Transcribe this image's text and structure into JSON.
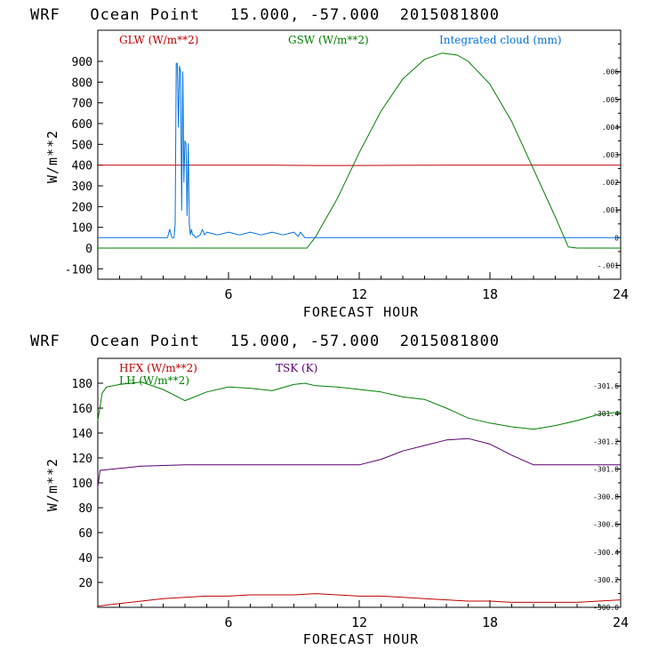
{
  "chart_data": [
    {
      "type": "line",
      "title": "WRF   Ocean Point   15.000, -57.000  2015081800",
      "xlabel": "FORECAST HOUR",
      "ylabel": "W/m**2",
      "xlim": [
        0,
        24
      ],
      "ylim": [
        -150,
        1050
      ],
      "x_ticks": [
        "6",
        "12",
        "18",
        "24"
      ],
      "y_ticks": [
        "-100",
        "0",
        "100",
        "200",
        "300",
        "400",
        "500",
        "600",
        "700",
        "800",
        "900"
      ],
      "y2_ticks": [
        "-.001",
        "0",
        ".001",
        ".002",
        ".003",
        ".004",
        ".005",
        ".006"
      ],
      "series": [
        {
          "name": "GLW (W/m**2)",
          "axis": "left",
          "color": "#c00000",
          "x": [
            0,
            2,
            4,
            6,
            8,
            10,
            12,
            14,
            16,
            18,
            20,
            22,
            24
          ],
          "values": [
            400,
            400,
            400,
            400,
            400,
            398,
            398,
            399,
            400,
            400,
            400,
            400,
            400
          ]
        },
        {
          "name": "GSW (W/m**2)",
          "axis": "left",
          "color": "#008000",
          "x": [
            0,
            9.6,
            10,
            11,
            12,
            13,
            14,
            15,
            15.8,
            16.5,
            17,
            18,
            19,
            20,
            21,
            21.6,
            22,
            24
          ],
          "values": [
            0,
            0,
            55,
            240,
            460,
            660,
            815,
            910,
            940,
            930,
            900,
            790,
            610,
            380,
            150,
            5,
            0,
            0
          ]
        },
        {
          "name": "Integrated cloud (mm)",
          "axis": "right",
          "color": "#0070e0",
          "x": [
            0,
            3.2,
            3.3,
            3.4,
            3.5,
            3.55,
            3.6,
            3.65,
            3.7,
            3.75,
            3.8,
            3.85,
            3.9,
            3.95,
            4.0,
            4.05,
            4.1,
            4.15,
            4.2,
            4.25,
            4.3,
            4.35,
            4.4,
            4.5,
            4.7,
            4.8,
            4.9,
            5.0,
            5.5,
            6.0,
            6.5,
            7.0,
            7.5,
            8.0,
            8.5,
            9.0,
            9.2,
            9.3,
            9.5,
            24
          ],
          "values": [
            0,
            0,
            0.0003,
            0,
            0,
            0.0005,
            0.0063,
            0.0063,
            0.004,
            0.0062,
            0.006,
            0.001,
            0.006,
            0.002,
            0.0035,
            0.0034,
            0.0008,
            0.0034,
            0.0005,
            0.0001,
            0.0003,
            0.0001,
            0.0001,
            0,
            0.0001,
            0.0003,
            0.0001,
            0.0002,
            0.0001,
            0.0002,
            0.0001,
            0.0002,
            0.0001,
            0.0002,
            0.0001,
            0.0002,
            5e-05,
            0.0002,
            0,
            0
          ]
        }
      ]
    },
    {
      "type": "line",
      "title": "WRF   Ocean Point   15.000, -57.000  2015081800",
      "xlabel": "FORECAST HOUR",
      "ylabel": "W/m**2",
      "xlim": [
        0,
        24
      ],
      "ylim": [
        0,
        200
      ],
      "x_ticks": [
        "6",
        "12",
        "18",
        "24"
      ],
      "y_ticks": [
        "20",
        "40",
        "60",
        "80",
        "100",
        "120",
        "140",
        "160",
        "180"
      ],
      "y2_ticks": [
        "300.0",
        "300.2",
        "300.4",
        "300.6",
        "300.8",
        "301.0",
        "301.2",
        "301.4",
        "301.6"
      ],
      "series": [
        {
          "name": "HFX (W/m**2)",
          "axis": "left",
          "color": "#c00000",
          "x": [
            0,
            1,
            2,
            3,
            4,
            5,
            6,
            7,
            8,
            9,
            10,
            11,
            12,
            13,
            14,
            15,
            16,
            17,
            18,
            19,
            20,
            21,
            22,
            23,
            24
          ],
          "values": [
            1,
            3,
            5,
            7,
            8,
            9,
            9,
            10,
            10,
            10,
            11,
            10,
            9,
            9,
            8,
            7,
            6,
            5,
            5,
            4,
            4,
            4,
            4,
            5,
            6
          ]
        },
        {
          "name": "LH (W/m**2)",
          "axis": "left",
          "color": "#008000",
          "x": [
            0,
            0.2,
            0.4,
            1,
            2,
            3,
            4,
            5,
            6,
            7,
            8,
            9,
            9.5,
            10,
            11,
            12,
            13,
            14,
            15,
            16,
            17,
            18,
            19,
            20,
            21,
            22,
            23,
            24
          ],
          "values": [
            150,
            172,
            177,
            179,
            181,
            175,
            166,
            173,
            177,
            176,
            174,
            179,
            180,
            178,
            177,
            175,
            173,
            169,
            167,
            160,
            152,
            148,
            145,
            143,
            146,
            150,
            155,
            157
          ]
        },
        {
          "name": "TSK (K)",
          "axis": "right",
          "color": "#5a0070",
          "x": [
            0,
            0.1,
            2,
            4,
            6,
            8,
            10,
            12,
            13,
            14,
            15,
            16,
            17,
            18,
            19,
            20,
            21,
            24
          ],
          "values": [
            300.87,
            300.99,
            301.02,
            301.03,
            301.03,
            301.03,
            301.03,
            301.03,
            301.07,
            301.13,
            301.17,
            301.21,
            301.22,
            301.18,
            301.1,
            301.03,
            301.03,
            301.03
          ]
        }
      ]
    }
  ]
}
